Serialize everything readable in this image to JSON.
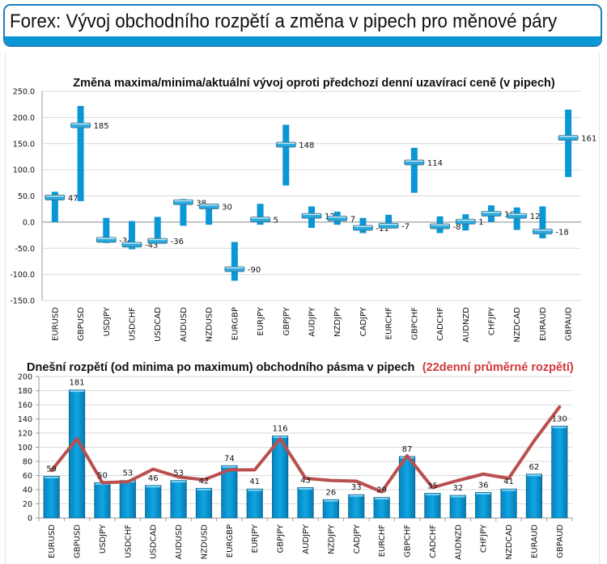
{
  "page": {
    "title": "Forex: Vývoj obchodního rozpětí a změna v pipech pro měnové páry"
  },
  "colors": {
    "accent": "#0a97d6",
    "bar": "#0a97d6",
    "line": "#b9504f",
    "title_red": "#d2373a"
  },
  "chart_data": [
    {
      "type": "range",
      "title": "Změna maxima/minima/aktuální vývoj oproti předchozí denní uzavírací ceně (v pipech)",
      "xlabel": "",
      "ylabel": "",
      "ylim": [
        -150,
        250
      ],
      "yticks": [
        "250.0",
        "200.0",
        "150.0",
        "100.0",
        "50.0",
        "0.0",
        "-50.0",
        "-100.0",
        "-150.0"
      ],
      "ytick_values": [
        250,
        200,
        150,
        100,
        50,
        0,
        -50,
        -100,
        -150
      ],
      "grid": true,
      "categories": [
        "EURUSD",
        "GBPUSD",
        "USDJPY",
        "USDCHF",
        "USDCAD",
        "AUDUSD",
        "NZDUSD",
        "EURGBP",
        "EURJPY",
        "GBPJPY",
        "AUDJPY",
        "NZDJPY",
        "CADJPY",
        "EURCHF",
        "GBPCHF",
        "CADCHF",
        "AUDNZD",
        "CHFJPY",
        "NZDCAD",
        "EURAUD",
        "GBPAUD"
      ],
      "high": [
        58,
        222,
        8,
        2,
        10,
        44,
        35,
        -38,
        35,
        186,
        30,
        20,
        8,
        14,
        142,
        11,
        15,
        32,
        28,
        30,
        215
      ],
      "low": [
        0,
        40,
        -40,
        -52,
        -40,
        -7,
        -5,
        -112,
        -5,
        70,
        -11,
        -5,
        -21,
        -12,
        56,
        -21,
        -16,
        0,
        -15,
        -31,
        86
      ],
      "current": [
        47,
        185,
        -34,
        -43,
        -36,
        38,
        30,
        -90,
        5,
        148,
        12,
        7,
        -11,
        -7,
        114,
        -8,
        1,
        16,
        12,
        -18,
        161
      ],
      "labels": [
        "47",
        "185",
        "-34",
        "-43",
        "-36",
        "38",
        "30",
        "-90",
        "5",
        "148",
        "12",
        "7",
        "-11",
        "-7",
        "114",
        "-8",
        "1",
        "16",
        "12",
        "-18",
        "161"
      ]
    },
    {
      "type": "bar+line",
      "title": "Dnešní rozpětí (od minima po maximum) obchodního pásma v pipech",
      "title_suffix": "(22denní průměrné rozpětí)",
      "xlabel": "",
      "ylabel": "",
      "ylim": [
        0,
        200
      ],
      "yticks": [
        "200",
        "180",
        "160",
        "140",
        "120",
        "100",
        "80",
        "60",
        "40",
        "20",
        "0"
      ],
      "ytick_values": [
        200,
        180,
        160,
        140,
        120,
        100,
        80,
        60,
        40,
        20,
        0
      ],
      "grid": true,
      "categories": [
        "EURUSD",
        "GBPUSD",
        "USDJPY",
        "USDCHF",
        "USDCAD",
        "AUDUSD",
        "NZDUSD",
        "EURGBP",
        "EURJPY",
        "GBPJPY",
        "AUDJPY",
        "NZDJPY",
        "CADJPY",
        "EURCHF",
        "GBPCHF",
        "CADCHF",
        "AUDNZD",
        "CHFJPY",
        "NZDCAD",
        "EURAUD",
        "GBPAUD"
      ],
      "series": [
        {
          "name": "Dnešní rozpětí",
          "type": "bar",
          "values": [
            59,
            181,
            50,
            53,
            46,
            53,
            42,
            74,
            41,
            116,
            43,
            26,
            33,
            29,
            87,
            35,
            32,
            36,
            41,
            62,
            130
          ],
          "labels": [
            "59",
            "181",
            "50",
            "53",
            "46",
            "53",
            "42",
            "74",
            "41",
            "116",
            "43",
            "26",
            "33",
            "29",
            "87",
            "35",
            "32",
            "36",
            "41",
            "62",
            "130"
          ]
        },
        {
          "name": "22denní průměrné rozpětí",
          "type": "line",
          "values": [
            67,
            112,
            50,
            51,
            69,
            58,
            54,
            68,
            68,
            112,
            56,
            53,
            52,
            37,
            88,
            43,
            53,
            62,
            56,
            109,
            157
          ]
        }
      ]
    }
  ]
}
